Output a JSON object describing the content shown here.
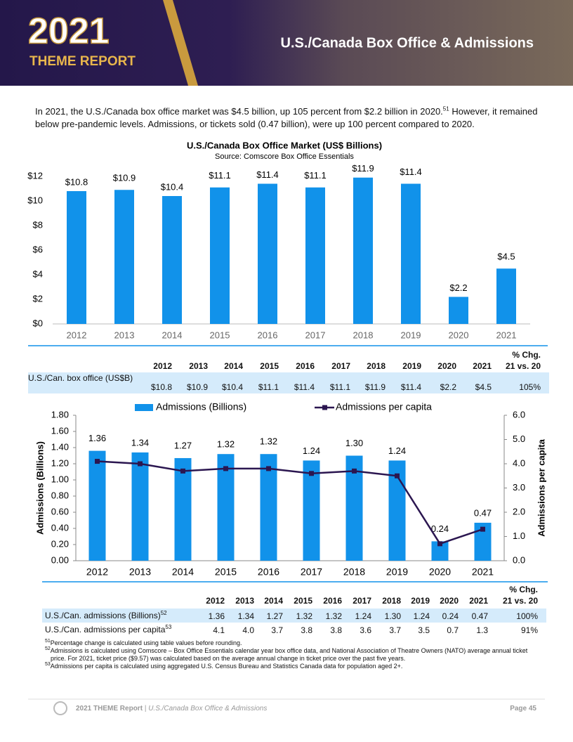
{
  "header": {
    "year": "2021",
    "report": "THEME REPORT",
    "title": "U.S./Canada Box Office & Admissions"
  },
  "intro": {
    "text1": "In 2021, the U.S./Canada box office market was $4.5 billion, up 105 percent from $2.2 billion in 2020.",
    "sup": "51",
    "text2": "However, it remained below pre-pandemic levels. Admissions, or tickets sold (0.47 billion), were up 100 percent compared to 2020."
  },
  "chart_data": [
    {
      "type": "bar",
      "title": "U.S./Canada Box Office Market (US$ Billions)",
      "subtitle": "Source: Comscore Box Office Essentials",
      "categories": [
        "2012",
        "2013",
        "2014",
        "2015",
        "2016",
        "2017",
        "2018",
        "2019",
        "2020",
        "2021"
      ],
      "values": [
        10.8,
        10.9,
        10.4,
        11.1,
        11.4,
        11.1,
        11.9,
        11.4,
        2.2,
        4.5
      ],
      "value_labels": [
        "$10.8",
        "$10.9",
        "$10.4",
        "$11.1",
        "$11.4",
        "$11.1",
        "$11.9",
        "$11.4",
        "$2.2",
        "$4.5"
      ],
      "color": "#1192ea",
      "ylim": [
        0,
        12
      ],
      "yticks": [
        {
          "value": 0,
          "label": "$0"
        },
        {
          "value": 2,
          "label": "$2"
        },
        {
          "value": 4,
          "label": "$4"
        },
        {
          "value": 6,
          "label": "$6"
        },
        {
          "value": 8,
          "label": "$8"
        },
        {
          "value": 10,
          "label": "$10"
        },
        {
          "value": 12,
          "label": "$12"
        }
      ],
      "grid": false
    },
    {
      "type": "combo",
      "ylabel": "Admissions (Billions)",
      "y2label": "Admissions per capita",
      "legend": "top",
      "categories": [
        "2012",
        "2013",
        "2014",
        "2015",
        "2016",
        "2017",
        "2018",
        "2019",
        "2020",
        "2021"
      ],
      "series": [
        {
          "name": "Admissions (Billions)",
          "type": "bar",
          "color": "#1192ea",
          "values": [
            1.36,
            1.34,
            1.27,
            1.32,
            1.32,
            1.24,
            1.3,
            1.24,
            0.24,
            0.47
          ],
          "value_labels": [
            "1.36",
            "1.34",
            "1.27",
            "1.32",
            "1.32",
            "1.24",
            "1.30",
            "1.24",
            "0.24",
            "0.47"
          ]
        },
        {
          "name": "Admissions per capita",
          "type": "line",
          "color": "#2b1650",
          "axis": "y2",
          "values": [
            4.1,
            4.0,
            3.7,
            3.8,
            3.8,
            3.6,
            3.7,
            3.5,
            0.7,
            1.3
          ]
        }
      ],
      "ylim": [
        0,
        1.8
      ],
      "yticks": [
        {
          "value": 0,
          "label": "0.00"
        },
        {
          "value": 0.2,
          "label": "0.20"
        },
        {
          "value": 0.4,
          "label": "0.40"
        },
        {
          "value": 0.6,
          "label": "0.60"
        },
        {
          "value": 0.8,
          "label": "0.80"
        },
        {
          "value": 1,
          "label": "1.00"
        },
        {
          "value": 1.2,
          "label": "1.20"
        },
        {
          "value": 1.4,
          "label": "1.40"
        },
        {
          "value": 1.6,
          "label": "1.60"
        },
        {
          "value": 1.8,
          "label": "1.80"
        }
      ],
      "y2lim": [
        0,
        6
      ],
      "y2ticks": [
        {
          "value": 0,
          "label": "0.0"
        },
        {
          "value": 1,
          "label": "1.0"
        },
        {
          "value": 2,
          "label": "2.0"
        },
        {
          "value": 3,
          "label": "3.0"
        },
        {
          "value": 4,
          "label": "4.0"
        },
        {
          "value": 5,
          "label": "5.0"
        },
        {
          "value": 6,
          "label": "6.0"
        }
      ],
      "grid": false
    }
  ],
  "table1": {
    "change_header": [
      "% Chg.",
      "21 vs. 20"
    ],
    "columns": [
      "2012",
      "2013",
      "2014",
      "2015",
      "2016",
      "2017",
      "2018",
      "2019",
      "2020",
      "2021"
    ],
    "rows": [
      {
        "label": "U.S./Can. box office (US$B)",
        "cells": [
          "$10.8",
          "$10.9",
          "$10.4",
          "$11.1",
          "$11.4",
          "$11.1",
          "$11.9",
          "$11.4",
          "$2.2",
          "$4.5",
          "105%"
        ]
      }
    ]
  },
  "table2": {
    "change_header": [
      "% Chg.",
      "21 vs. 20"
    ],
    "columns": [
      "2012",
      "2013",
      "2014",
      "2015",
      "2016",
      "2017",
      "2018",
      "2019",
      "2020",
      "2021"
    ],
    "rows": [
      {
        "label": "U.S./Can. admissions (Billions)",
        "note": "52",
        "cells": [
          "1.36",
          "1.34",
          "1.27",
          "1.32",
          "1.32",
          "1.24",
          "1.30",
          "1.24",
          "0.24",
          "0.47",
          "100%"
        ]
      },
      {
        "label": "U.S./Can. admissions per capita",
        "note": "53",
        "cells": [
          "4.1",
          "4.0",
          "3.7",
          "3.8",
          "3.8",
          "3.6",
          "3.7",
          "3.5",
          "0.7",
          "1.3",
          "91%"
        ]
      }
    ]
  },
  "footnotes": [
    {
      "mark": "51",
      "text": "Percentage change is calculated using table values before rounding."
    },
    {
      "mark": "52",
      "text": "Admissions is calculated using Comscore – Box Office Essentials calendar year box office data, and National Association of Theatre Owners (NATO) average annual ticket price. For 2021, ticket price ($9.57) was calculated based on the average annual change in ticket price over the past five years."
    },
    {
      "mark": "53",
      "text": "Admissions per capita is calculated using aggregated U.S. Census Bureau and Statistics Canada data for population aged 2+."
    }
  ],
  "footer": {
    "report": "2021 THEME Report",
    "separator": "|",
    "section": "U.S./Canada Box Office & Admissions",
    "page": "Page 45"
  }
}
